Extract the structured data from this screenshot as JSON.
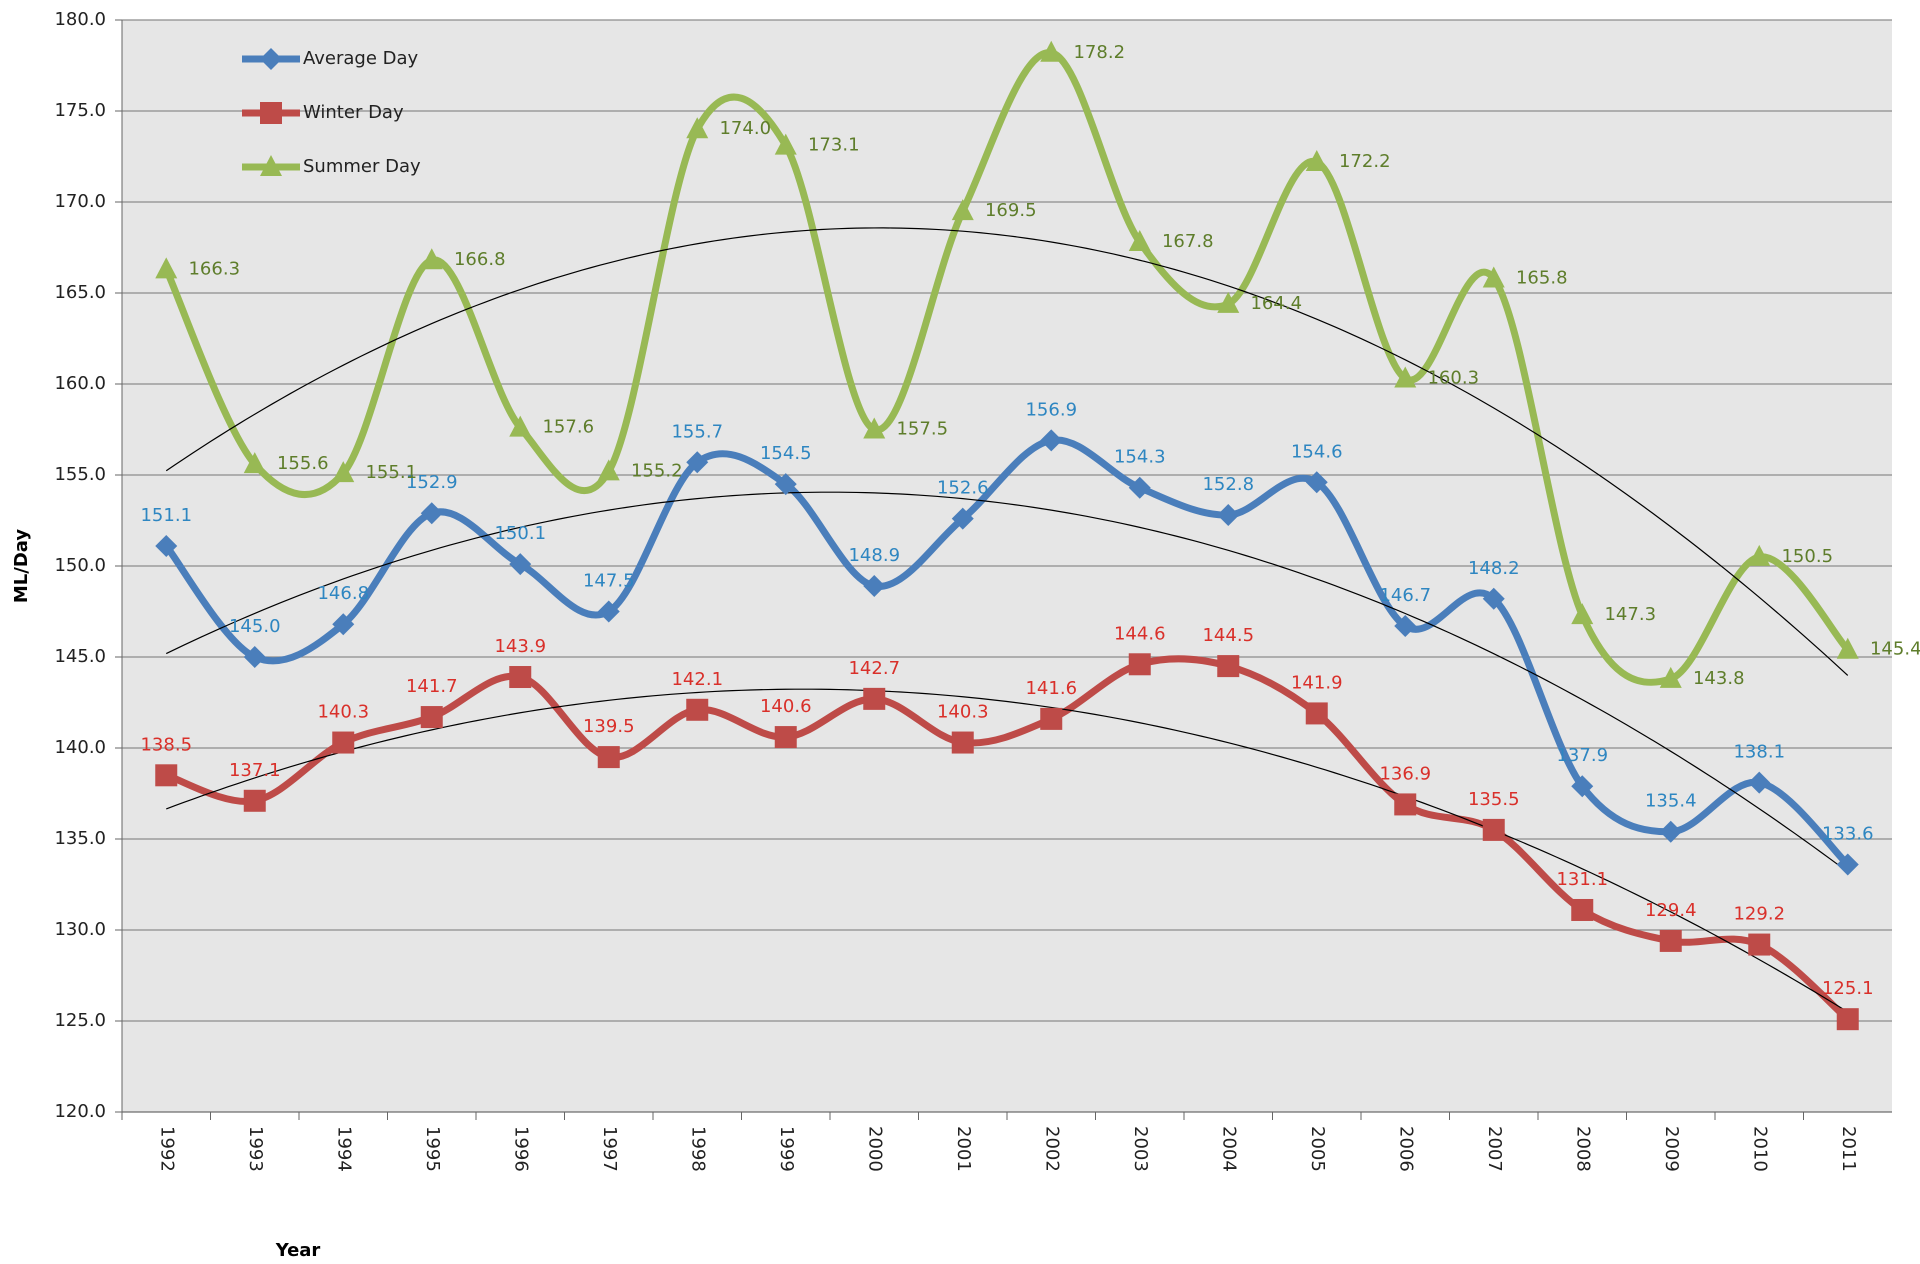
{
  "chart_data": {
    "type": "line",
    "x_label": "Year",
    "y_label": "ML/Day",
    "categories": [
      "1992",
      "1993",
      "1994",
      "1995",
      "1996",
      "1997",
      "1998",
      "1999",
      "2000",
      "2001",
      "2002",
      "2003",
      "2004",
      "2005",
      "2006",
      "2007",
      "2008",
      "2009",
      "2010",
      "2011"
    ],
    "series": [
      {
        "name": "Average Day",
        "color": "#4a7ebb",
        "marker": "diamond",
        "values": [
          151.1,
          145.0,
          146.8,
          152.9,
          150.1,
          147.5,
          155.7,
          154.5,
          148.9,
          152.6,
          156.9,
          154.3,
          152.8,
          154.6,
          146.7,
          148.2,
          137.9,
          135.4,
          138.1,
          133.6
        ],
        "value_labels": [
          "151.1",
          "145.0",
          "146.8",
          "152.9",
          "150.1",
          "147.5",
          "155.7",
          "154.5",
          "148.9",
          "152.6",
          "156.9",
          "154.3",
          "152.8",
          "154.6",
          "146.7",
          "148.2",
          "137.9",
          "135.4",
          "138.1",
          "133.6"
        ]
      },
      {
        "name": "Winter Day",
        "color": "#be4b48",
        "marker": "square",
        "values": [
          138.5,
          137.1,
          140.3,
          141.7,
          143.9,
          139.5,
          142.1,
          140.6,
          142.7,
          140.3,
          141.6,
          144.6,
          144.5,
          141.9,
          136.9,
          135.5,
          131.1,
          129.4,
          129.2,
          125.1
        ],
        "value_labels": [
          "138.5",
          "137.1",
          "140.3",
          "141.7",
          "143.9",
          "139.5",
          "142.1",
          "140.6",
          "142.7",
          "140.3",
          "141.6",
          "144.6",
          "144.5",
          "141.9",
          "136.9",
          "135.5",
          "131.1",
          "129.4",
          "129.2",
          "125.1"
        ]
      },
      {
        "name": "Summer Day",
        "color": "#98b954",
        "marker": "triangle",
        "values": [
          166.3,
          155.6,
          155.1,
          166.8,
          157.6,
          155.2,
          174.0,
          173.1,
          157.5,
          169.5,
          178.2,
          167.8,
          164.4,
          172.2,
          160.3,
          165.8,
          147.3,
          143.8,
          150.5,
          145.4
        ],
        "value_labels": [
          "166.3",
          "155.6",
          "155.1",
          "166.8",
          "157.6",
          "155.2",
          "174.0",
          "173.1",
          "157.5",
          "169.5",
          "178.2",
          "167.8",
          "164.4",
          "172.2",
          "160.3",
          "165.8",
          "147.3",
          "143.8",
          "150.5",
          "145.4"
        ]
      }
    ],
    "ylim": [
      120,
      180
    ],
    "yticks": [
      {
        "value": 120,
        "label": "120.0"
      },
      {
        "value": 125,
        "label": "125.0"
      },
      {
        "value": 130,
        "label": "130.0"
      },
      {
        "value": 135,
        "label": "135.0"
      },
      {
        "value": 140,
        "label": "140.0"
      },
      {
        "value": 145,
        "label": "145.0"
      },
      {
        "value": 150,
        "label": "150.0"
      },
      {
        "value": 155,
        "label": "155.0"
      },
      {
        "value": 160,
        "label": "160.0"
      },
      {
        "value": 165,
        "label": "165.0"
      },
      {
        "value": 170,
        "label": "170.0"
      },
      {
        "value": 175,
        "label": "175.0"
      },
      {
        "value": 180,
        "label": "180.0"
      }
    ],
    "grid": true,
    "smooth": true,
    "legend": "top-left"
  }
}
